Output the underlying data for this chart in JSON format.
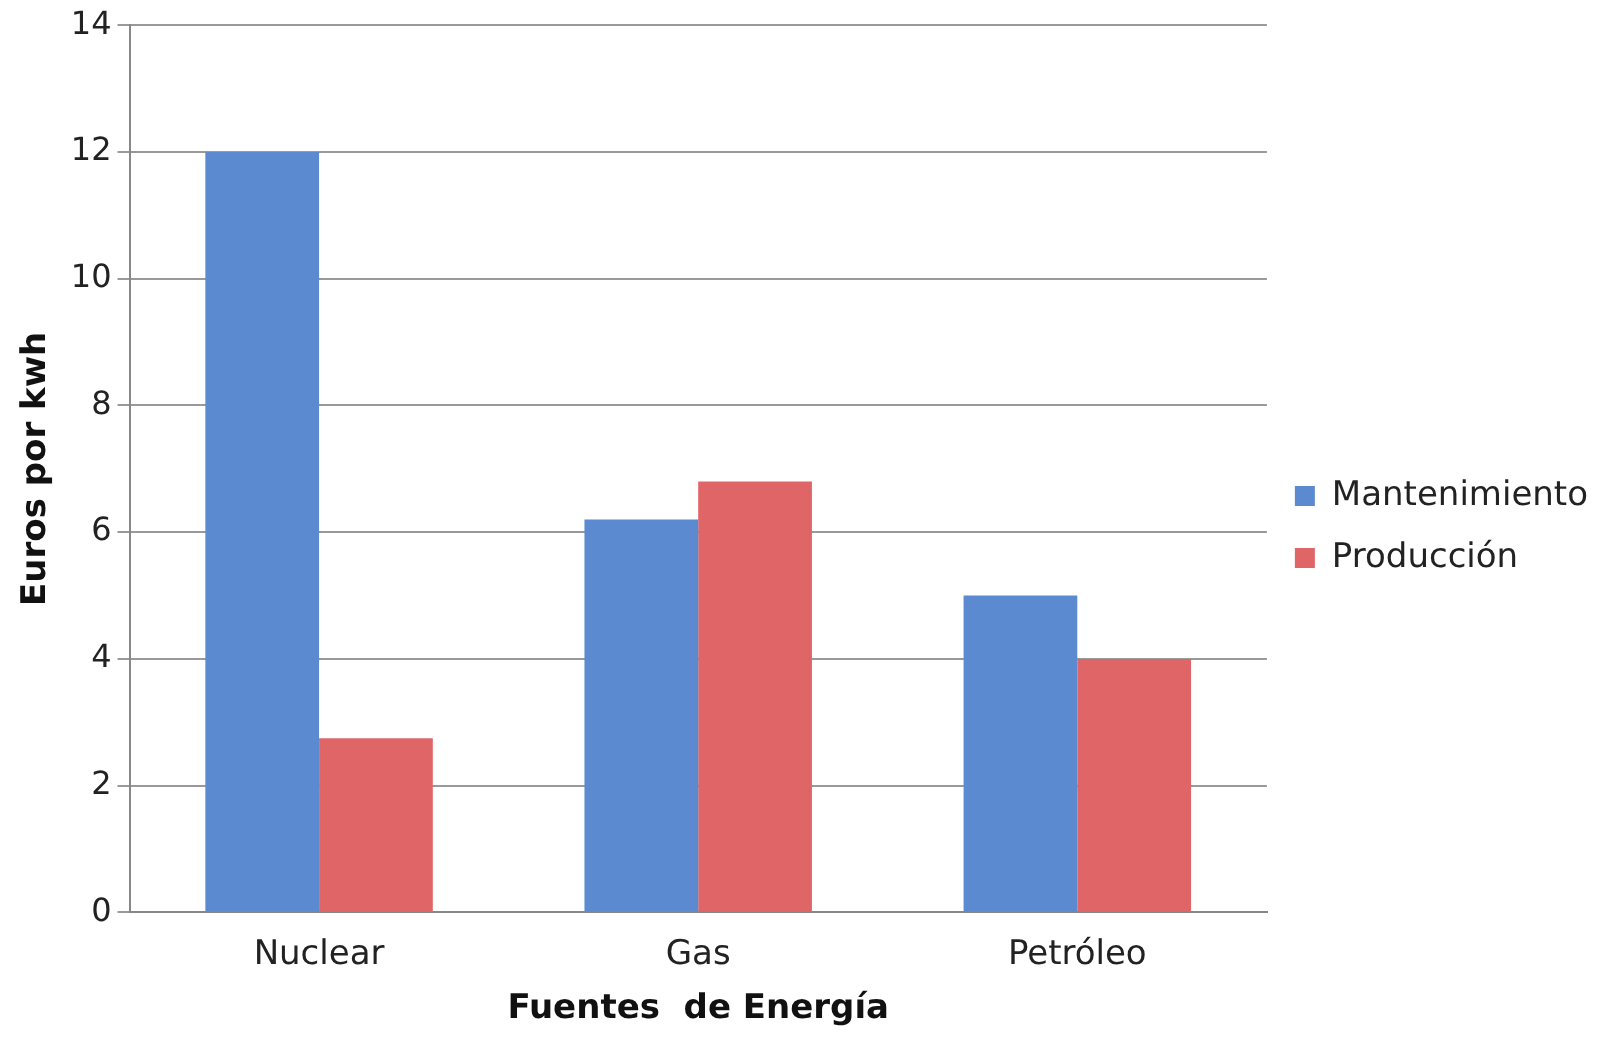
{
  "chart_data": {
    "type": "bar",
    "xlabel": "Fuentes  de Energía",
    "ylabel": "Euros por kwh",
    "categories": [
      "Nuclear",
      "Gas",
      "Petróleo"
    ],
    "series": [
      {
        "name": "Mantenimiento",
        "color": "#5b8ad0",
        "values": [
          12,
          6.2,
          5
        ]
      },
      {
        "name": "Producción",
        "color": "#e06567",
        "values": [
          2.75,
          6.8,
          4
        ]
      }
    ],
    "ylim": [
      0,
      14
    ],
    "yticks": [
      0,
      2,
      4,
      6,
      8,
      10,
      12,
      14
    ],
    "grid": "y",
    "legend": "right"
  }
}
